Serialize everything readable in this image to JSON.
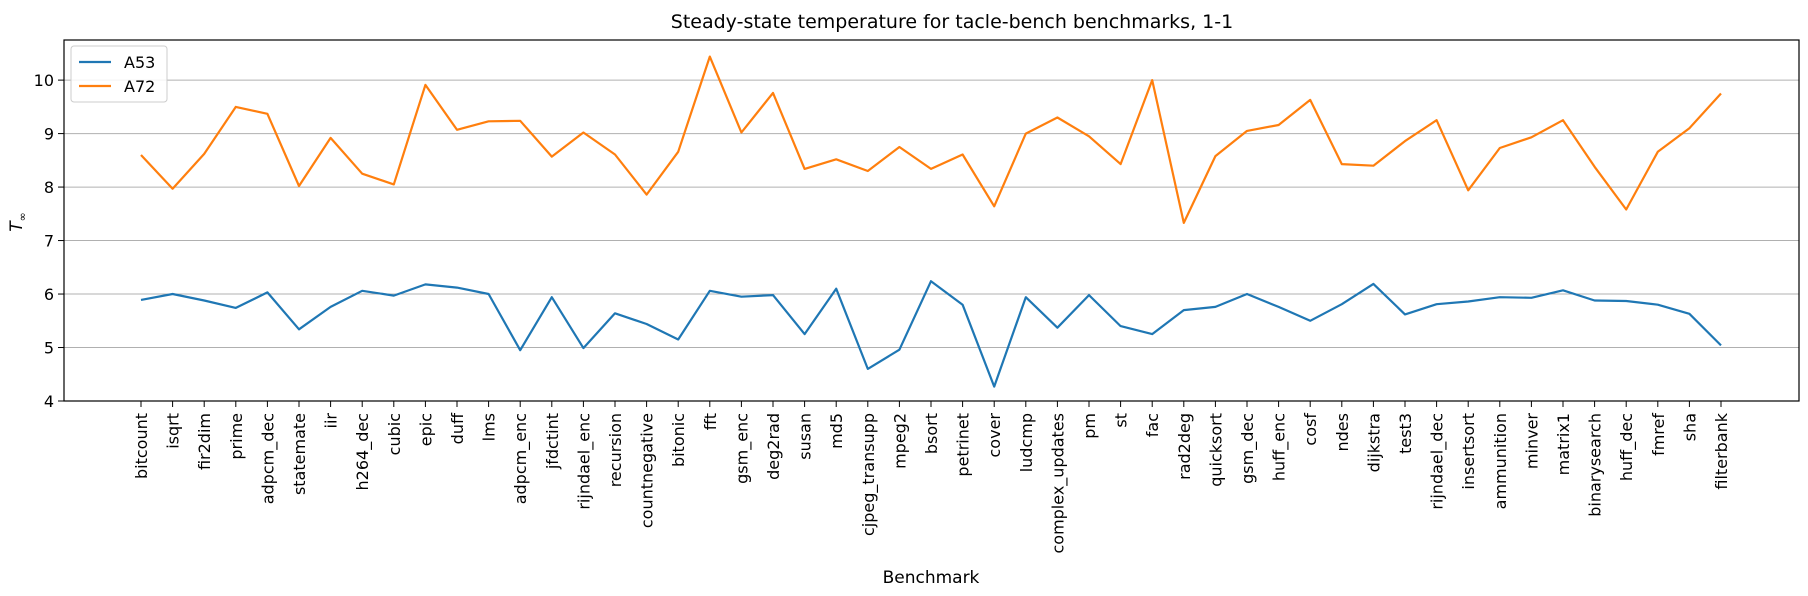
{
  "chart_data": {
    "type": "line",
    "title": "Steady-state temperature for tacle-bench benchmarks, 1-1",
    "xlabel": "Benchmark",
    "ylabel": "T",
    "ylabel_subscript": "∞",
    "ylim": [
      4,
      10.75
    ],
    "yticks": [
      4,
      5,
      6,
      7,
      8,
      9,
      10
    ],
    "grid": "horizontal",
    "legend_position": "top-left",
    "categories": [
      "bitcount",
      "isqrt",
      "fir2dim",
      "prime",
      "adpcm_dec",
      "statemate",
      "iir",
      "h264_dec",
      "cubic",
      "epic",
      "duff",
      "lms",
      "adpcm_enc",
      "jfdctint",
      "rijndael_enc",
      "recursion",
      "countnegative",
      "bitonic",
      "fft",
      "gsm_enc",
      "deg2rad",
      "susan",
      "md5",
      "cjpeg_transupp",
      "mpeg2",
      "bsort",
      "petrinet",
      "cover",
      "ludcmp",
      "complex_updates",
      "pm",
      "st",
      "fac",
      "rad2deg",
      "quicksort",
      "gsm_dec",
      "huff_enc",
      "cosf",
      "ndes",
      "dijkstra",
      "test3",
      "rijndael_dec",
      "insertsort",
      "ammunition",
      "minver",
      "matrix1",
      "binarysearch",
      "huff_dec",
      "fmref",
      "sha",
      "filterbank"
    ],
    "series": [
      {
        "name": "A53",
        "color": "#1f77b4",
        "values": [
          5.89,
          6.0,
          5.88,
          5.74,
          6.03,
          5.34,
          5.76,
          6.06,
          5.97,
          6.18,
          6.12,
          6.0,
          4.95,
          5.94,
          4.99,
          5.64,
          5.44,
          5.15,
          6.06,
          5.95,
          5.98,
          5.25,
          6.1,
          4.6,
          4.96,
          6.24,
          5.8,
          4.27,
          5.94,
          5.37,
          5.98,
          5.4,
          5.25,
          5.7,
          5.76,
          6.0,
          5.76,
          5.5,
          5.81,
          6.19,
          5.62,
          5.81,
          5.86,
          5.94,
          5.93,
          6.07,
          5.88,
          5.87,
          5.8,
          5.63,
          5.04
        ]
      },
      {
        "name": "A72",
        "color": "#ff7f0e",
        "values": [
          8.6,
          7.97,
          8.62,
          9.5,
          9.37,
          8.02,
          8.92,
          8.25,
          8.05,
          9.91,
          9.07,
          9.23,
          9.24,
          8.57,
          9.02,
          8.61,
          7.86,
          8.66,
          10.44,
          9.02,
          9.76,
          8.34,
          8.52,
          8.3,
          8.75,
          8.34,
          8.61,
          7.64,
          9.0,
          9.3,
          8.95,
          8.43,
          10.0,
          7.33,
          8.58,
          9.05,
          9.16,
          9.63,
          8.43,
          8.4,
          8.86,
          9.25,
          7.94,
          8.73,
          8.93,
          9.25,
          8.38,
          7.58,
          8.66,
          9.1,
          9.75
        ]
      }
    ]
  }
}
